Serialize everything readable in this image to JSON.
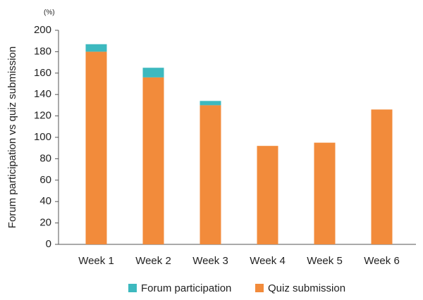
{
  "chart_data": {
    "type": "stacked-bar",
    "unit_label": "(%)",
    "y_label": "Forum participation vs quiz submission",
    "categories": [
      "Week 1",
      "Week 2",
      "Week 3",
      "Week 4",
      "Week 5",
      "Week 6"
    ],
    "series": [
      {
        "name": "Forum participation",
        "color": "#3db9bf",
        "values": [
          7,
          9,
          4,
          0,
          0,
          0
        ]
      },
      {
        "name": "Quiz submission",
        "color": "#f28b3b",
        "values": [
          180,
          156,
          130,
          92,
          95,
          126
        ]
      }
    ],
    "ylim": [
      0,
      200
    ],
    "yticks": [
      0,
      20,
      40,
      60,
      80,
      100,
      120,
      140,
      160,
      180,
      200
    ],
    "legend": "bottom"
  }
}
